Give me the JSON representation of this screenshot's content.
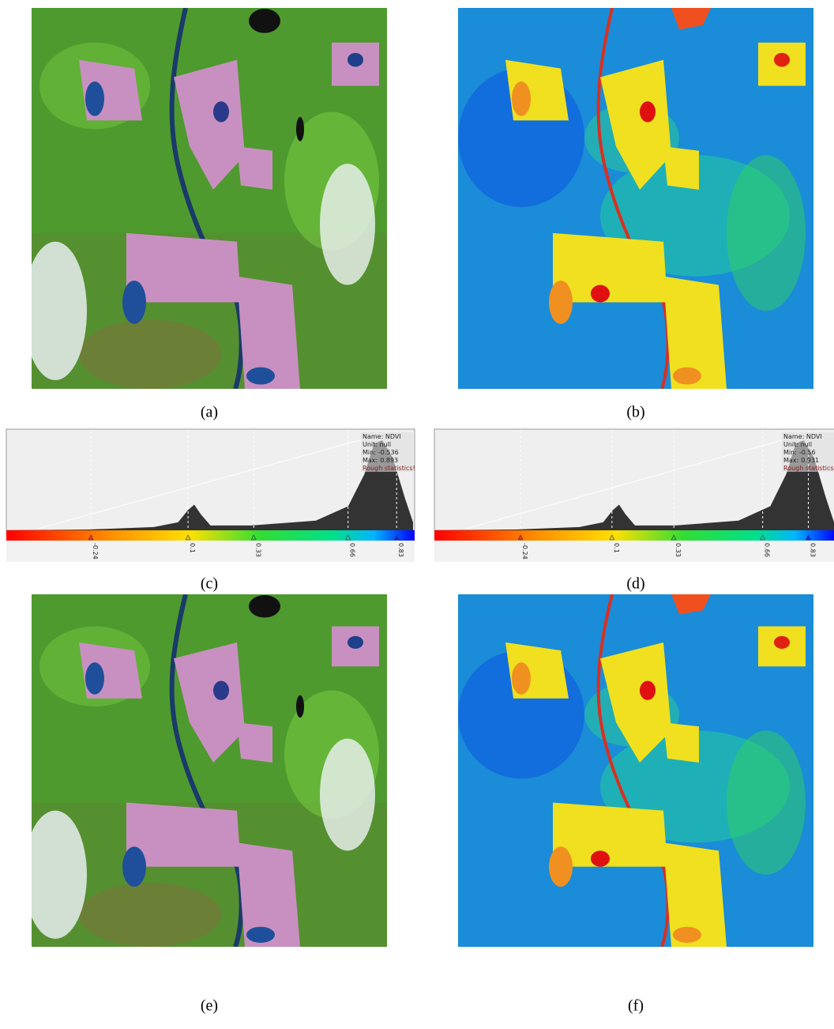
{
  "figure": {
    "panels": [
      {
        "caption": "(a)"
      },
      {
        "caption": "(b)"
      },
      {
        "caption": "(e)"
      },
      {
        "caption": "(f)"
      }
    ],
    "histograms": [
      {
        "caption": "(c)",
        "name": "Name: NDVI",
        "unit": "Unit: null",
        "min": {
          "label": "Min:",
          "value": -0.536
        },
        "max": {
          "label": "Max:",
          "value": 0.893
        },
        "note": "Rough statistics!",
        "ticks": [
          -0.24,
          0.1,
          0.33,
          0.66,
          0.83
        ]
      },
      {
        "caption": "(d)",
        "name": "Name: NDVI",
        "unit": "Unit: null",
        "min": {
          "label": "Min:",
          "value": -0.56
        },
        "max": {
          "label": "Max:",
          "value": 0.931
        },
        "note": "Rough statistics!",
        "ticks": [
          -0.24,
          0.1,
          0.33,
          0.66,
          0.83
        ]
      }
    ]
  }
}
